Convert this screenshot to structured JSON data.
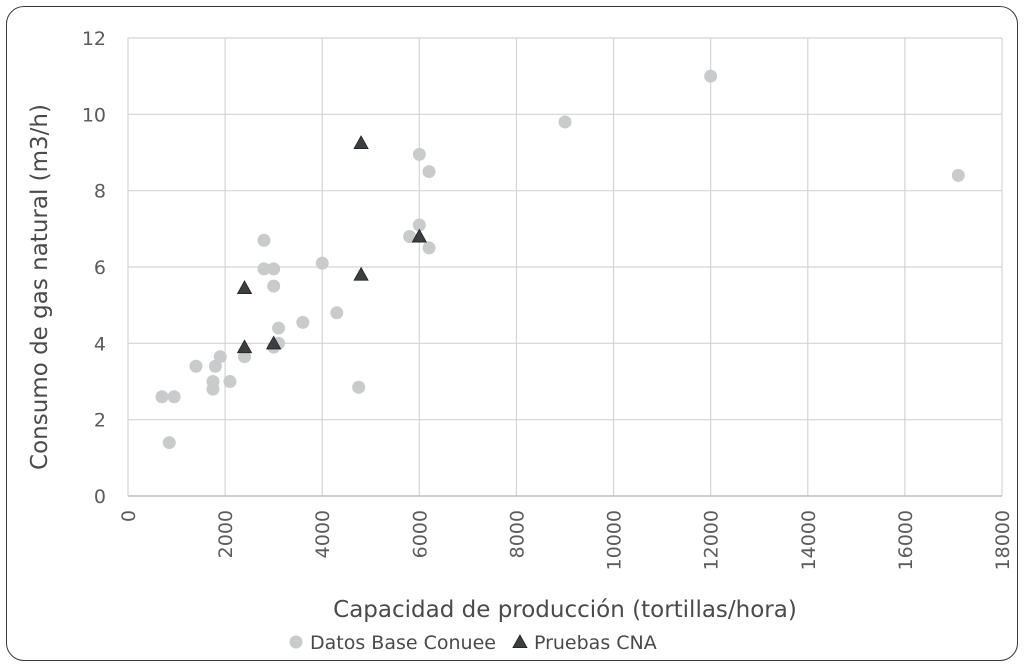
{
  "chart_data": {
    "type": "scatter",
    "title": "",
    "xlabel": "Capacidad de producción (tortillas/hora)",
    "ylabel": "Consumo de gas natural (m3/h)",
    "xlim": [
      0,
      18000
    ],
    "ylim": [
      0,
      12
    ],
    "xticks": [
      "0",
      "2000",
      "4000",
      "6000",
      "8000",
      "10000",
      "12000",
      "14000",
      "16000",
      "18000"
    ],
    "yticks": [
      "0",
      "2",
      "4",
      "6",
      "8",
      "10",
      "12"
    ],
    "grid": true,
    "legend_position": "bottom",
    "series": [
      {
        "name": "Datos Base Conuee",
        "marker": "circle",
        "color": "#c8cacc",
        "points": [
          [
            700,
            2.6
          ],
          [
            950,
            2.6
          ],
          [
            850,
            1.4
          ],
          [
            1400,
            3.4
          ],
          [
            1800,
            3.4
          ],
          [
            1900,
            3.65
          ],
          [
            1750,
            2.8
          ],
          [
            1750,
            3.0
          ],
          [
            2100,
            3.0
          ],
          [
            2400,
            3.65
          ],
          [
            2800,
            6.7
          ],
          [
            2800,
            5.95
          ],
          [
            3000,
            5.95
          ],
          [
            3000,
            5.5
          ],
          [
            3100,
            4.4
          ],
          [
            3100,
            4.0
          ],
          [
            3000,
            3.9
          ],
          [
            3600,
            4.55
          ],
          [
            4000,
            6.1
          ],
          [
            4300,
            4.8
          ],
          [
            4750,
            2.85
          ],
          [
            5800,
            6.8
          ],
          [
            6000,
            7.1
          ],
          [
            6000,
            8.95
          ],
          [
            6200,
            8.5
          ],
          [
            6200,
            6.5
          ],
          [
            9000,
            9.8
          ],
          [
            12000,
            11.0
          ],
          [
            17100,
            8.4
          ]
        ]
      },
      {
        "name": "Pruebas CNA",
        "marker": "triangle",
        "color": "#3c3f42",
        "points": [
          [
            2400,
            5.45
          ],
          [
            2400,
            3.9
          ],
          [
            3000,
            4.0
          ],
          [
            4800,
            5.8
          ],
          [
            4800,
            9.25
          ],
          [
            6000,
            6.8
          ]
        ]
      }
    ]
  }
}
